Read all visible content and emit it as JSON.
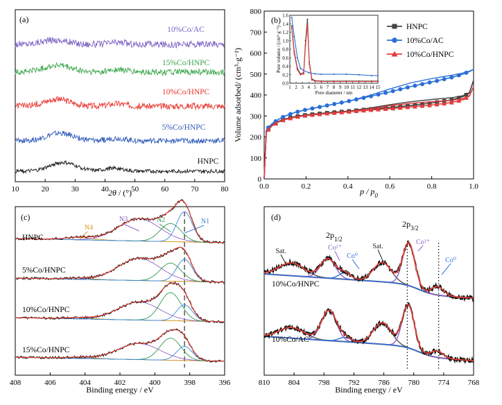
{
  "chart_data": [
    {
      "panel": "(a)",
      "type": "line",
      "xlabel": "2θ / (°)",
      "xlim": [
        10,
        80
      ],
      "x_ticks": [
        10,
        20,
        30,
        40,
        50,
        60,
        70,
        80
      ],
      "y_ticks": [],
      "series": [
        {
          "name": "10%Co/AC",
          "color": "#7a62c4",
          "profile": {
            "hump_centers": [
              23,
              44
            ],
            "hump_heights": [
              0.35,
              0.15
            ],
            "noise": 0.55
          }
        },
        {
          "name": "15%Co/HNPC",
          "color": "#3aa54a",
          "profile": {
            "hump_centers": [
              24,
              44
            ],
            "hump_heights": [
              0.55,
              0.2
            ],
            "noise": 0.5
          }
        },
        {
          "name": "10%Co/HNPC",
          "color": "#e8322d",
          "profile": {
            "hump_centers": [
              24,
              44
            ],
            "hump_heights": [
              0.55,
              0.2
            ],
            "noise": 0.5
          }
        },
        {
          "name": "5%Co/HNPC",
          "color": "#2e58b8",
          "profile": {
            "hump_centers": [
              25,
              44
            ],
            "hump_heights": [
              0.6,
              0.2
            ],
            "noise": 0.45
          }
        },
        {
          "name": "HNPC",
          "color": "#111111",
          "profile": {
            "hump_centers": [
              26,
              43
            ],
            "hump_heights": [
              0.7,
              0.25
            ],
            "noise": 0.3
          }
        }
      ]
    },
    {
      "panel": "(b)",
      "type": "line",
      "xlabel": "p / p0",
      "ylabel": "Volume adsorbed/ (cm³·g⁻¹)",
      "xlim": [
        0.0,
        1.0
      ],
      "ylim": [
        0,
        800
      ],
      "x_ticks": [
        "0.0",
        "0.2",
        "0.4",
        "0.6",
        "0.8",
        "1.0"
      ],
      "y_ticks": [
        0,
        100,
        200,
        300,
        400,
        500,
        600,
        700,
        800
      ],
      "legend": "top-right",
      "series": [
        {
          "name": "HNPC",
          "color": "#444444",
          "marker": "square",
          "x": [
            0.0,
            0.01,
            0.02,
            0.04,
            0.07,
            0.1,
            0.15,
            0.2,
            0.3,
            0.4,
            0.5,
            0.6,
            0.7,
            0.8,
            0.9,
            0.95,
            0.98,
            1.0
          ],
          "y": [
            0,
            225,
            240,
            258,
            275,
            286,
            298,
            305,
            315,
            323,
            332,
            340,
            350,
            362,
            378,
            392,
            410,
            470
          ]
        },
        {
          "name": "10%Co/AC",
          "color": "#2a6fd6",
          "marker": "circle",
          "x": [
            0.0,
            0.01,
            0.02,
            0.04,
            0.07,
            0.1,
            0.15,
            0.2,
            0.3,
            0.4,
            0.5,
            0.6,
            0.7,
            0.8,
            0.9,
            0.95,
            0.98,
            1.0
          ],
          "y": [
            0,
            230,
            245,
            265,
            285,
            300,
            318,
            330,
            350,
            370,
            392,
            415,
            440,
            462,
            485,
            500,
            512,
            522
          ]
        },
        {
          "name": "10%Co/HNPC",
          "color": "#e23c3c",
          "marker": "triangle",
          "x": [
            0.0,
            0.01,
            0.02,
            0.04,
            0.07,
            0.1,
            0.15,
            0.2,
            0.3,
            0.4,
            0.5,
            0.6,
            0.7,
            0.8,
            0.9,
            0.95,
            0.98,
            1.0
          ],
          "y": [
            0,
            220,
            235,
            255,
            272,
            283,
            295,
            302,
            312,
            320,
            328,
            335,
            343,
            352,
            365,
            378,
            395,
            440
          ]
        }
      ],
      "inset": {
        "xlabel": "Pore diameter / nm",
        "ylabel": "Pore volume / (cm³·g⁻¹)",
        "xlim": [
          1,
          15
        ],
        "ylim": [
          0.0,
          1.6
        ],
        "x_ticks": [
          1,
          2,
          3,
          4,
          5,
          6,
          7,
          8,
          9,
          10,
          11,
          12,
          13,
          14,
          15
        ],
        "y_ticks": [
          "0.0",
          "0.2",
          "0.4",
          "0.6",
          "0.8",
          "1.0",
          "1.2",
          "1.4",
          "1.6"
        ],
        "series": [
          {
            "name": "HNPC",
            "color": "#444444",
            "x": [
              1.3,
              1.7,
              2.2,
              2.7,
              3.2,
              3.5,
              3.8,
              4.1,
              4.5,
              5,
              6,
              8,
              10,
              12,
              14,
              15
            ],
            "y": [
              1.35,
              0.75,
              0.35,
              0.22,
              0.25,
              1.0,
              1.5,
              0.5,
              0.1,
              0.06,
              0.05,
              0.05,
              0.05,
              0.05,
              0.05,
              0.05
            ]
          },
          {
            "name": "10%Co/AC",
            "color": "#2a6fd6",
            "x": [
              1.3,
              1.7,
              2.2,
              2.7,
              3.2,
              4,
              5,
              6,
              8,
              10,
              12,
              14,
              15
            ],
            "y": [
              1.55,
              1.1,
              0.6,
              0.35,
              0.3,
              0.25,
              0.22,
              0.21,
              0.21,
              0.21,
              0.2,
              0.18,
              0.18
            ]
          },
          {
            "name": "10%Co/HNPC",
            "color": "#e23c3c",
            "x": [
              1.3,
              1.7,
              2.2,
              2.7,
              3.2,
              3.5,
              3.8,
              4.1,
              4.5,
              5,
              6,
              8,
              10,
              12,
              14,
              15
            ],
            "y": [
              1.3,
              0.7,
              0.32,
              0.2,
              0.22,
              0.9,
              1.38,
              0.45,
              0.08,
              0.05,
              0.04,
              0.04,
              0.04,
              0.04,
              0.04,
              0.04
            ]
          }
        ]
      }
    },
    {
      "panel": "(c)",
      "type": "line",
      "xlabel": "Binding energy / eV",
      "xlim": [
        408,
        396
      ],
      "x_ticks": [
        408,
        406,
        404,
        402,
        400,
        398,
        396
      ],
      "y_ticks": [],
      "dashed_line_x": 398.3,
      "peak_labels": [
        "N4",
        "N3",
        "N2",
        "N1"
      ],
      "peak_label_colors": [
        "#d9961e",
        "#8e62c8",
        "#2f9a4e",
        "#3c86d6"
      ],
      "peak_centers_eV": [
        404.3,
        400.9,
        399.1,
        398.3
      ],
      "samples": [
        {
          "name": "HNPC",
          "peak_heights": [
            0.06,
            0.55,
            0.45,
            0.75
          ]
        },
        {
          "name": "5%Co/HNPC",
          "peak_heights": [
            0.03,
            0.55,
            0.45,
            0.55
          ]
        },
        {
          "name": "10%Co/HNPC",
          "peak_heights": [
            0.03,
            0.45,
            0.7,
            0.4
          ]
        },
        {
          "name": "15%Co/HNPC",
          "peak_heights": [
            0.03,
            0.4,
            0.55,
            0.35
          ]
        }
      ]
    },
    {
      "panel": "(d)",
      "type": "line",
      "xlabel": "Binding energy / eV",
      "xlim": [
        810,
        768
      ],
      "x_ticks": [
        810,
        804,
        798,
        792,
        786,
        780,
        774,
        768
      ],
      "y_ticks": [],
      "header_labels": [
        "2p",
        "1/2",
        "2p",
        "3/2"
      ],
      "peak_labels": [
        "Sat.",
        "Co²⁺",
        "Co⁰",
        "Sat.",
        "Co²⁺",
        "Co⁰"
      ],
      "dotted_lines_x": [
        781.3,
        775.0
      ],
      "samples": [
        {
          "name": "10%Co/HNPC",
          "peak_centers_eV": [
            804.5,
            797.2,
            793.8,
            786.3,
            781.0,
            775.2
          ],
          "peak_heights": [
            0.3,
            0.45,
            0.15,
            0.45,
            1.0,
            0.2
          ]
        },
        {
          "name": "10%Co/AC",
          "peak_centers_eV": [
            804.5,
            797.0,
            793.8,
            786.3,
            781.1,
            775.3
          ],
          "peak_heights": [
            0.25,
            0.7,
            0.1,
            0.5,
            1.0,
            0.15
          ]
        }
      ]
    }
  ]
}
